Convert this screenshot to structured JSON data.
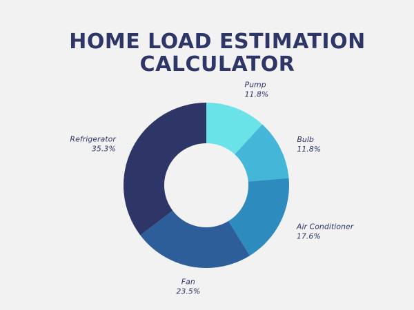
{
  "page": {
    "background": "#f2f2f2",
    "title_line1": "HOME LOAD ESTIMATION",
    "title_line2": "CALCULATOR",
    "title_color": "#2e3567"
  },
  "chart_data": {
    "type": "pie",
    "subtype": "donut",
    "title": "HOME LOAD ESTIMATION CALCULATOR",
    "start": "12 o'clock",
    "direction": "clockwise",
    "legend": "none",
    "slices": [
      {
        "label": "Pump",
        "percent_label": "11.8%",
        "value": 11.8,
        "color": "#6ae3e8"
      },
      {
        "label": "Bulb",
        "percent_label": "11.8%",
        "value": 11.8,
        "color": "#44b7d9"
      },
      {
        "label": "Air Conditioner",
        "percent_label": "17.6%",
        "value": 17.6,
        "color": "#2d8cbd"
      },
      {
        "label": "Fan",
        "percent_label": "23.5%",
        "value": 23.5,
        "color": "#2d5e99"
      },
      {
        "label": "Refrigerator",
        "percent_label": "35.3%",
        "value": 35.3,
        "color": "#2e3567"
      }
    ]
  }
}
